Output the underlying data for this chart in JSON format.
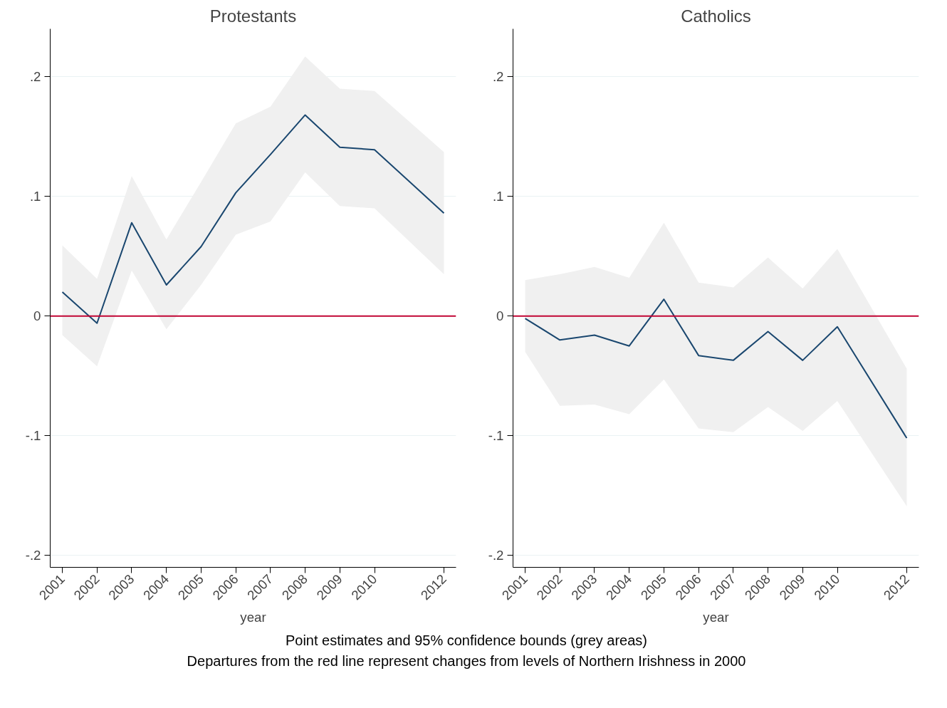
{
  "chart_data": [
    {
      "type": "line",
      "title": "Protestants",
      "xlabel": "year",
      "x": [
        2001,
        2002,
        2003,
        2004,
        2005,
        2006,
        2007,
        2008,
        2009,
        2010,
        2012
      ],
      "xlim": [
        2000.65,
        2012.35
      ],
      "xticks": [
        2001,
        2002,
        2003,
        2004,
        2005,
        2006,
        2007,
        2008,
        2009,
        2010,
        2012
      ],
      "ylim": [
        -0.21,
        0.24
      ],
      "yticks": [
        {
          "value": -0.2,
          "label": "-.2"
        },
        {
          "value": -0.1,
          "label": "-.1"
        },
        {
          "value": 0,
          "label": "0"
        },
        {
          "value": 0.1,
          "label": ".1"
        },
        {
          "value": 0.2,
          "label": ".2"
        }
      ],
      "grid": "y",
      "marker": "none",
      "line_style": "solid",
      "series": [
        {
          "color": "#1a476f",
          "values": [
            0.02,
            -0.006,
            0.078,
            0.026,
            0.058,
            0.103,
            0.135,
            0.168,
            0.141,
            0.139,
            0.086
          ],
          "lower": [
            -0.016,
            -0.042,
            0.038,
            -0.011,
            0.026,
            0.068,
            0.079,
            0.12,
            0.092,
            0.09,
            0.035
          ],
          "upper": [
            0.059,
            0.031,
            0.117,
            0.064,
            0.112,
            0.161,
            0.175,
            0.217,
            0.19,
            0.188,
            0.137
          ]
        }
      ],
      "ref_lines": [
        {
          "axis": "y",
          "value": 0,
          "color": "#c10534"
        }
      ],
      "annotations": [
        "Point estimates and 95% confidence bounds (grey areas)",
        "Departures from the red line represent changes from levels of Northern Irishness in 2000"
      ]
    },
    {
      "type": "line",
      "title": "Catholics",
      "xlabel": "year",
      "x": [
        2001,
        2002,
        2003,
        2004,
        2005,
        2006,
        2007,
        2008,
        2009,
        2010,
        2012
      ],
      "xlim": [
        2000.65,
        2012.35
      ],
      "xticks": [
        2001,
        2002,
        2003,
        2004,
        2005,
        2006,
        2007,
        2008,
        2009,
        2010,
        2012
      ],
      "ylim": [
        -0.21,
        0.24
      ],
      "yticks": [
        {
          "value": -0.2,
          "label": "-.2"
        },
        {
          "value": -0.1,
          "label": "-.1"
        },
        {
          "value": 0,
          "label": "0"
        },
        {
          "value": 0.1,
          "label": ".1"
        },
        {
          "value": 0.2,
          "label": ".2"
        }
      ],
      "grid": "y",
      "marker": "none",
      "line_style": "solid",
      "series": [
        {
          "color": "#1a476f",
          "values": [
            -0.002,
            -0.02,
            -0.016,
            -0.025,
            0.014,
            -0.033,
            -0.037,
            -0.013,
            -0.037,
            -0.009,
            -0.102
          ],
          "lower": [
            -0.03,
            -0.075,
            -0.074,
            -0.082,
            -0.053,
            -0.094,
            -0.097,
            -0.076,
            -0.096,
            -0.071,
            -0.159
          ],
          "upper": [
            0.03,
            0.035,
            0.041,
            0.032,
            0.078,
            0.028,
            0.024,
            0.049,
            0.023,
            0.056,
            -0.044
          ]
        }
      ],
      "ref_lines": [
        {
          "axis": "y",
          "value": 0,
          "color": "#c10534"
        }
      ]
    }
  ]
}
